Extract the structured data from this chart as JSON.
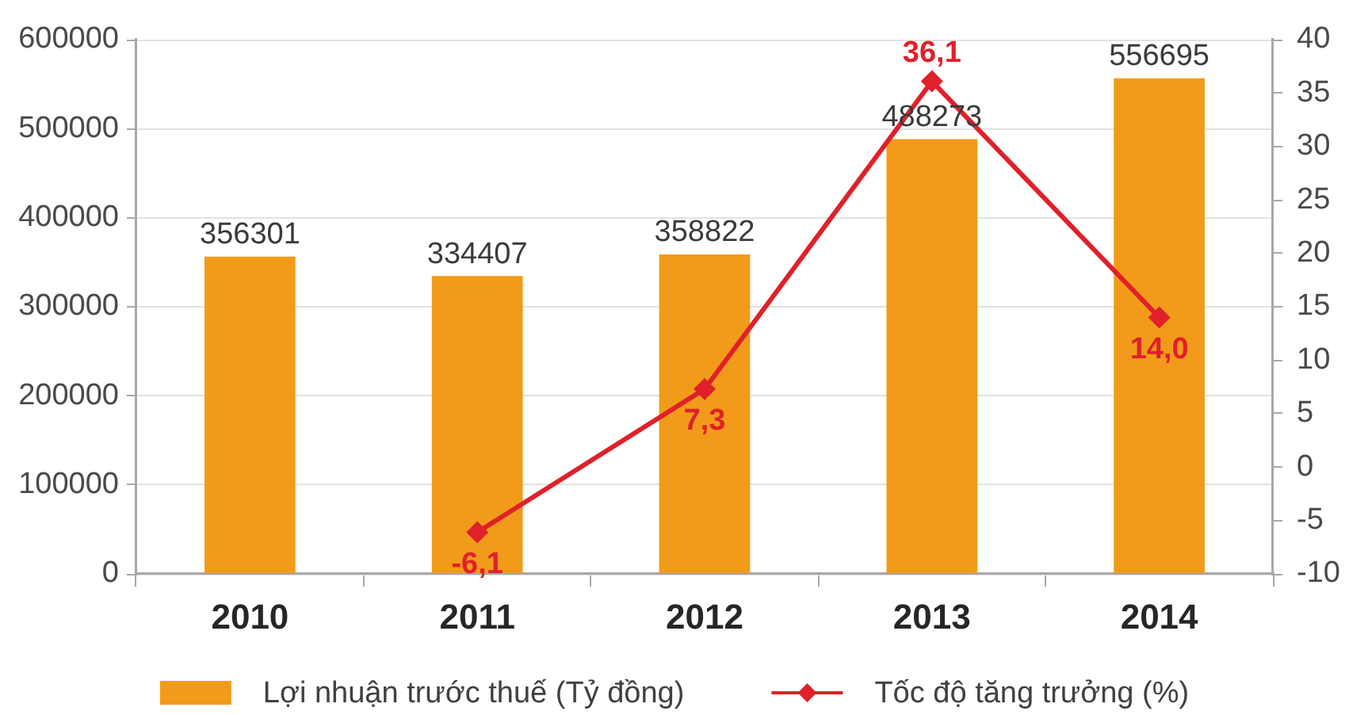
{
  "chart_data": {
    "type": "bar",
    "categories": [
      "2010",
      "2011",
      "2012",
      "2013",
      "2014"
    ],
    "series": [
      {
        "name": "Lợi nhuận trước thuế (Tỷ đồng)",
        "color": "#f29b1a",
        "values": [
          356301,
          334407,
          358822,
          488273,
          556695
        ],
        "value_labels": [
          "356301",
          "334407",
          "358822",
          "488273",
          "556695"
        ]
      },
      {
        "name": "Tốc độ tăng trưởng (%)",
        "type": "line",
        "axis": "y2",
        "color": "#e0202a",
        "marker": "diamond",
        "values": [
          null,
          -6.1,
          7.3,
          36.1,
          14.0
        ],
        "value_labels": [
          null,
          "-6,1",
          "7,3",
          "36,1",
          "14,0"
        ]
      }
    ],
    "ylim": [
      0,
      600000
    ],
    "yticks": [
      0,
      100000,
      200000,
      300000,
      400000,
      500000,
      600000
    ],
    "y2lim": [
      -10,
      40
    ],
    "y2ticks": [
      -10,
      -5,
      0,
      5,
      10,
      15,
      20,
      25,
      30,
      35,
      40
    ],
    "grid": "y",
    "legend": "bottom"
  }
}
